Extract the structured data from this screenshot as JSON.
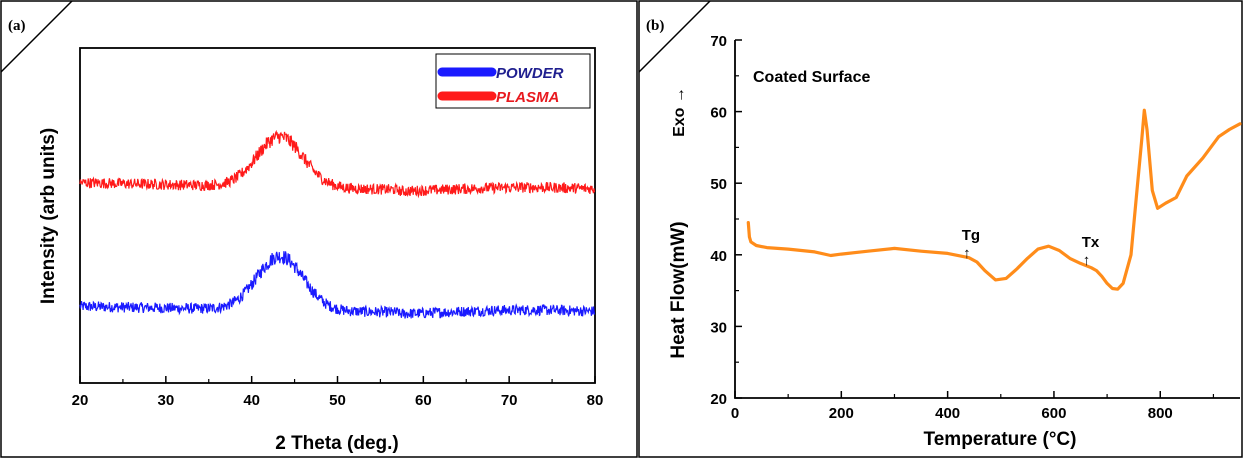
{
  "panels": [
    {
      "label": "(a)"
    },
    {
      "label": "(b)"
    }
  ],
  "chart_data": [
    {
      "type": "line",
      "title": "",
      "xlabel": "2 Theta (deg.)",
      "ylabel": "Intensity (arb units)",
      "xlim": [
        20,
        80
      ],
      "xticks": [
        "20",
        "30",
        "40",
        "50",
        "60",
        "70",
        "80"
      ],
      "yticks": [],
      "grid": false,
      "legend_position": "top-right",
      "series": [
        {
          "name": "POWDER",
          "color": "#1a1aff",
          "offset": 0,
          "peak_center": 43.3,
          "peak_height": 0.45,
          "peak_width": 3.8,
          "baseline_start": 0.13,
          "baseline_end": 0.08,
          "baseline_tail": 0.06
        },
        {
          "name": "PLASMA",
          "color": "#ff1a1a",
          "offset": 1.0,
          "peak_center": 43.3,
          "peak_height": 0.42,
          "peak_width": 3.8,
          "baseline_start": 0.12,
          "baseline_end": 0.06,
          "baseline_tail": 0.05
        }
      ],
      "legend_text_colors": {
        "POWDER": "#1f1f8f",
        "PLASMA": "#e8191e"
      }
    },
    {
      "type": "line",
      "title": "Coated Surface",
      "xlabel": "Temperature (°C)",
      "ylabel": "Heat Flow(mW)",
      "secondary_label": "Exo →",
      "xlim": [
        0,
        950
      ],
      "ylim": [
        20,
        70
      ],
      "xticks": [
        0,
        200,
        400,
        600,
        800
      ],
      "yticks": [
        20,
        30,
        40,
        50,
        60,
        70
      ],
      "grid": false,
      "line_color": "#ff8c1a",
      "annotations": [
        {
          "text": "Tg",
          "arrow": "↑",
          "x": 455,
          "y": 39
        },
        {
          "text": "Tx",
          "arrow": "↑",
          "x": 680,
          "y": 38
        }
      ],
      "series": [
        {
          "name": "",
          "x": [
            25,
            27,
            30,
            40,
            60,
            100,
            150,
            180,
            200,
            250,
            300,
            350,
            400,
            440,
            455,
            470,
            490,
            510,
            530,
            550,
            570,
            590,
            610,
            630,
            650,
            670,
            680,
            690,
            700,
            710,
            720,
            730,
            745,
            755,
            765,
            770,
            775,
            785,
            795,
            810,
            830,
            850,
            880,
            910,
            930,
            950
          ],
          "y": [
            44.5,
            42.5,
            41.8,
            41.3,
            41.0,
            40.8,
            40.4,
            39.9,
            40.1,
            40.5,
            40.9,
            40.5,
            40.2,
            39.6,
            39.0,
            37.8,
            36.5,
            36.7,
            38.0,
            39.5,
            40.8,
            41.2,
            40.6,
            39.5,
            38.8,
            38.2,
            37.8,
            37.0,
            36.0,
            35.3,
            35.2,
            36.0,
            40.0,
            48.0,
            56.0,
            60.2,
            57.5,
            49.0,
            46.5,
            47.2,
            48.0,
            51.0,
            53.5,
            56.5,
            57.5,
            58.3
          ]
        }
      ]
    }
  ]
}
